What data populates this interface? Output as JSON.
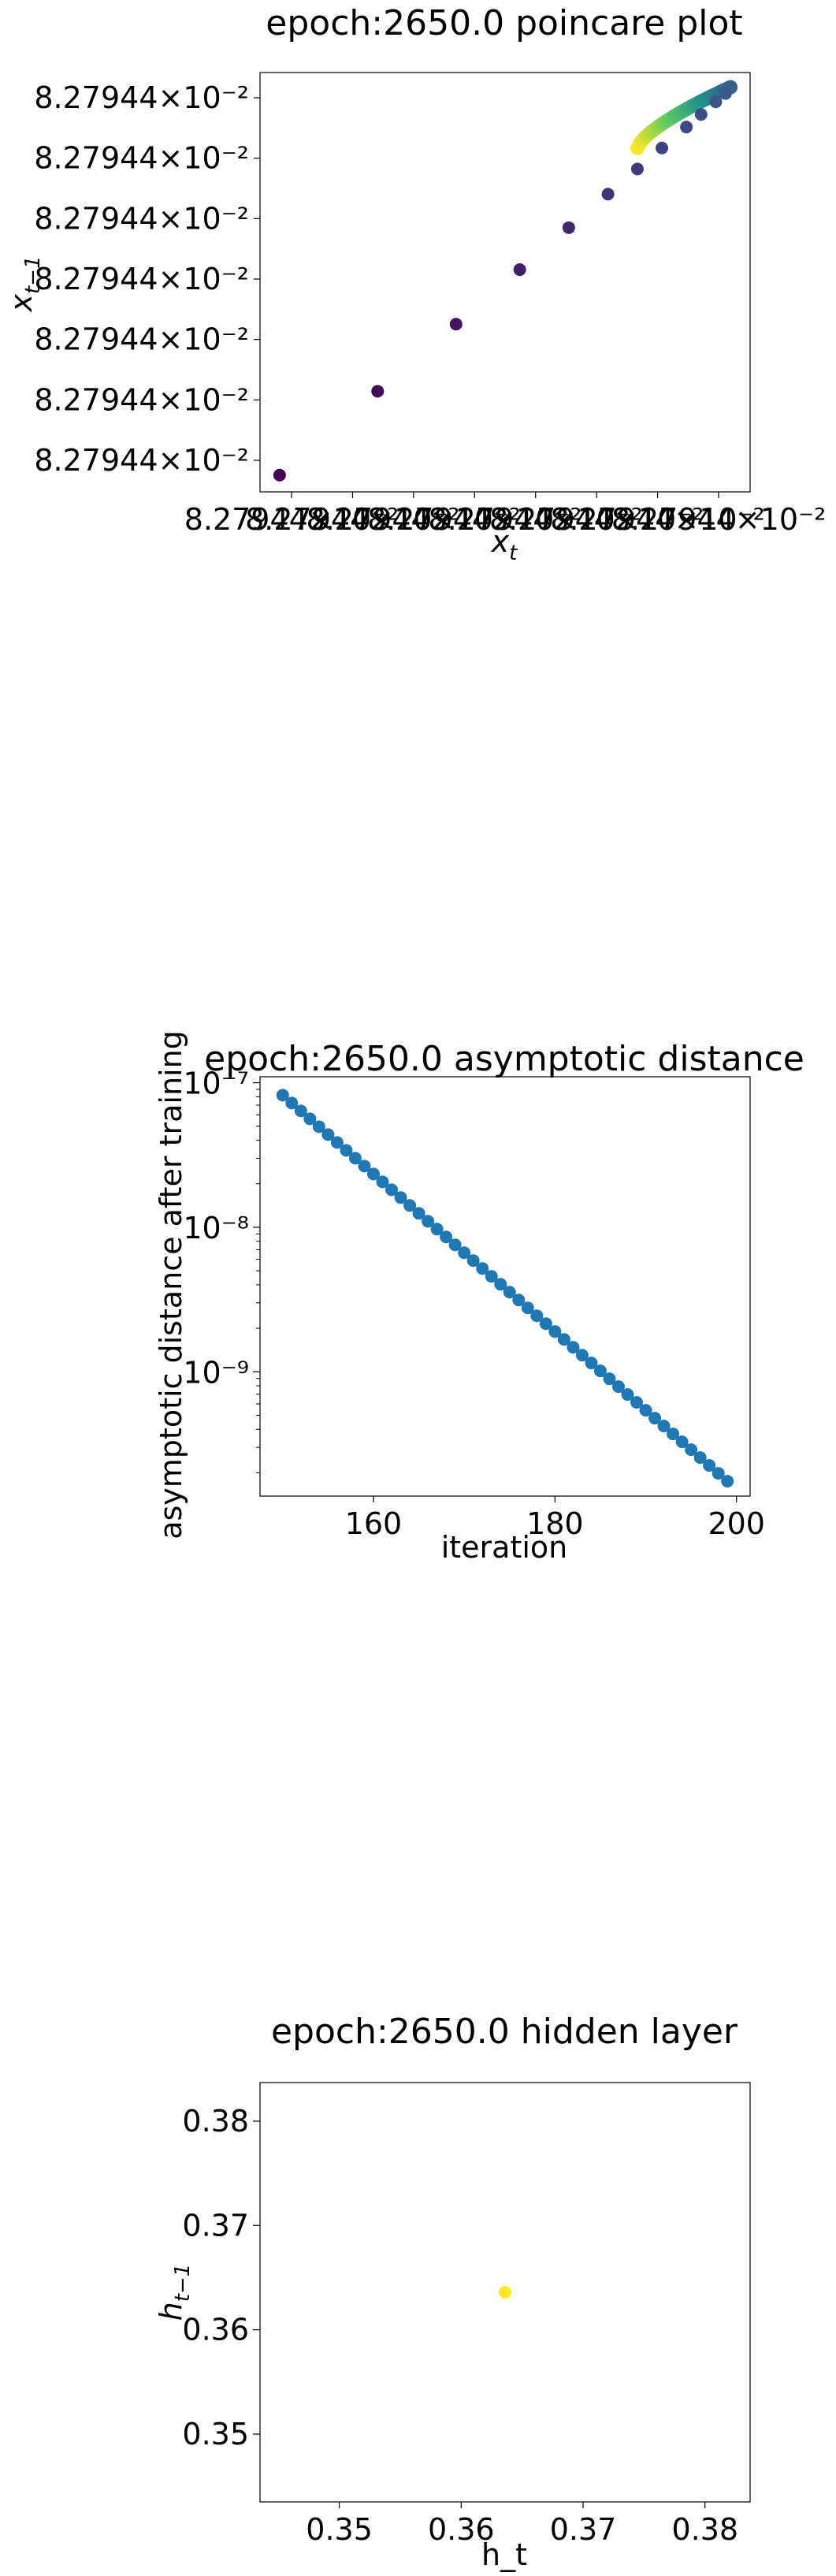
{
  "chart_data": [
    {
      "type": "scatter",
      "title": "epoch:2650.0 poincare plot",
      "xlabel": "x_t",
      "ylabel": "x_{t-1}",
      "x_tick_labels": [
        "8.27944×10⁻²",
        "8.27944×10⁻²",
        "8.27944×10⁻²",
        "8.27944×10⁻²",
        "8.27944×10⁻²",
        "8.27944×10⁻²",
        "8.27944×10⁻²",
        "8.27944×10⁻²"
      ],
      "y_tick_labels": [
        "8.27944×10⁻²",
        "8.27944×10⁻²",
        "8.27944×10⁻²",
        "8.27944×10⁻²",
        "8.27944×10⁻²",
        "8.27944×10⁻²",
        "8.27944×10⁻²"
      ],
      "xlim": [
        0.0,
        1.0
      ],
      "ylim": [
        0.0,
        1.0
      ],
      "colormap": [
        "#440154",
        "#3b528b",
        "#21918c",
        "#5ec962",
        "#fde725"
      ],
      "points": [
        {
          "x": 0.04,
          "y": 0.04,
          "c": 0.0
        },
        {
          "x": 0.24,
          "y": 0.24,
          "c": 0.03
        },
        {
          "x": 0.4,
          "y": 0.4,
          "c": 0.06
        },
        {
          "x": 0.53,
          "y": 0.53,
          "c": 0.09
        },
        {
          "x": 0.63,
          "y": 0.63,
          "c": 0.12
        },
        {
          "x": 0.71,
          "y": 0.71,
          "c": 0.15
        },
        {
          "x": 0.77,
          "y": 0.77,
          "c": 0.18
        },
        {
          "x": 0.82,
          "y": 0.82,
          "c": 0.2
        },
        {
          "x": 0.87,
          "y": 0.87,
          "c": 0.22
        },
        {
          "x": 0.9,
          "y": 0.9,
          "c": 0.24
        },
        {
          "x": 0.93,
          "y": 0.93,
          "c": 0.26
        },
        {
          "x": 0.95,
          "y": 0.95,
          "c": 0.28
        }
      ],
      "curve": {
        "x_start": 0.77,
        "y_start": 0.82,
        "x_end": 0.96,
        "y_end": 0.965,
        "count": 40,
        "c_start": 1.0,
        "c_end": 0.3
      }
    },
    {
      "type": "scatter",
      "title": "epoch:2650.0 asymptotic distance",
      "xlabel": "iteration",
      "ylabel": "asymptotic distance after training",
      "log_y": true,
      "xlim": [
        147.5,
        201.5
      ],
      "ylim": [
        1.38e-10,
        1.1e-07
      ],
      "x_ticks": [
        160,
        180,
        200
      ],
      "y_ticks": [
        1e-09,
        1e-08,
        1e-07
      ],
      "y_tick_labels": [
        "10⁻⁹",
        "10⁻⁸",
        "10⁻⁷"
      ],
      "series_color": "#1f77b4",
      "x": [
        150,
        151,
        152,
        153,
        154,
        155,
        156,
        157,
        158,
        159,
        160,
        161,
        162,
        163,
        164,
        165,
        166,
        167,
        168,
        169,
        170,
        171,
        172,
        173,
        174,
        175,
        176,
        177,
        178,
        179,
        180,
        181,
        182,
        183,
        184,
        185,
        186,
        187,
        188,
        189,
        190,
        191,
        192,
        193,
        194,
        195,
        196,
        197,
        198,
        199
      ],
      "y_start": 8.2e-08,
      "y_end": 1.75e-10
    },
    {
      "type": "scatter",
      "title": "epoch:2650.0 hidden layer",
      "xlabel": "h_t",
      "ylabel": "h_{t-1}",
      "xlim": [
        0.3435,
        0.3837
      ],
      "ylim": [
        0.3435,
        0.3837
      ],
      "x_ticks": [
        0.35,
        0.36,
        0.37,
        0.38
      ],
      "y_ticks": [
        0.35,
        0.36,
        0.37,
        0.38
      ],
      "x_tick_labels": [
        "0.35",
        "0.36",
        "0.37",
        "0.38"
      ],
      "y_tick_labels": [
        "0.35",
        "0.36",
        "0.37",
        "0.38"
      ],
      "point_color": "#fde725",
      "points": [
        {
          "x": 0.3636,
          "y": 0.3636
        }
      ]
    }
  ]
}
